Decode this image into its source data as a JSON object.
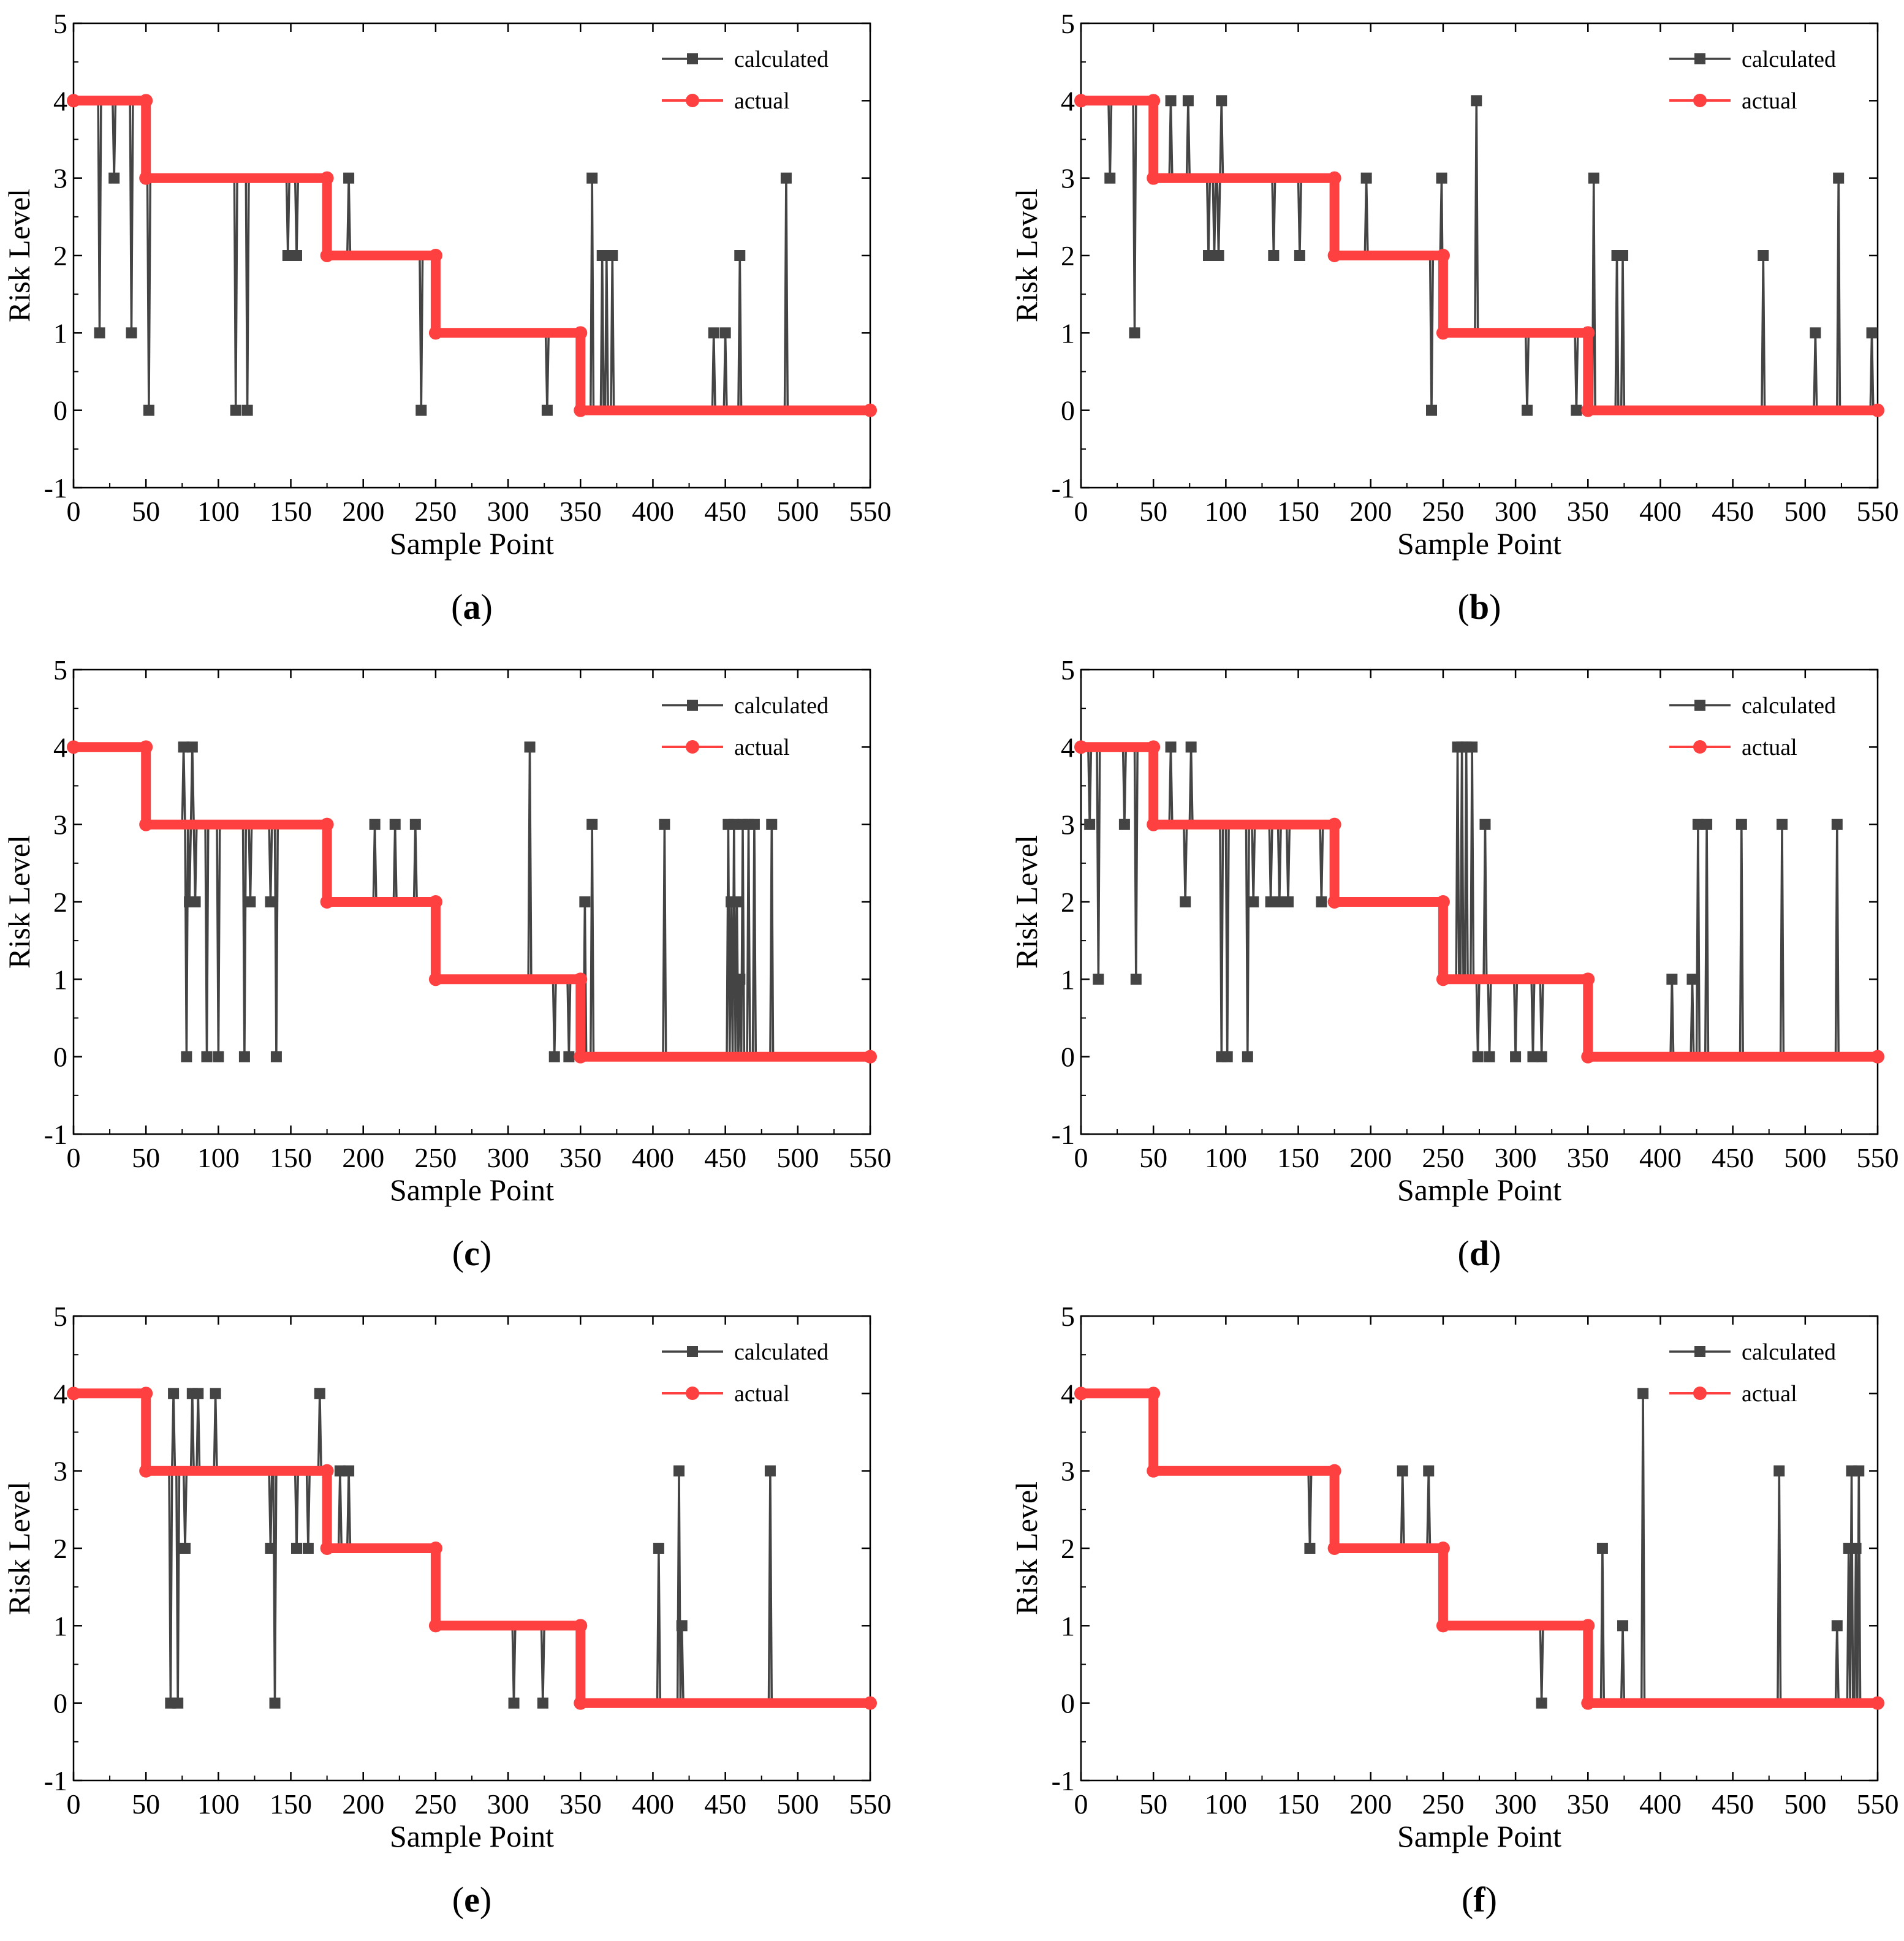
{
  "colors": {
    "calculated": "#444444",
    "actual": "#ff4040",
    "axis": "#000000"
  },
  "chart_data": [
    {
      "panel": "a",
      "type": "line",
      "xlabel": "Sample Point",
      "ylabel": "Risk Level",
      "xlim": [
        0,
        550
      ],
      "ylim": [
        -1,
        5
      ],
      "xticks": [
        0,
        50,
        100,
        150,
        200,
        250,
        300,
        350,
        400,
        450,
        500,
        550
      ],
      "yticks": [
        -1,
        0,
        1,
        2,
        3,
        4,
        5
      ],
      "legend": [
        "calculated",
        "actual"
      ],
      "legend_position": "top-right",
      "actual": {
        "breaks": [
          0,
          50,
          175,
          250,
          350,
          550
        ],
        "levels": [
          4,
          3,
          2,
          1,
          0
        ]
      },
      "calculated_deviations": [
        [
          18,
          1
        ],
        [
          28,
          3
        ],
        [
          40,
          1
        ],
        [
          52,
          0
        ],
        [
          112,
          0
        ],
        [
          120,
          0
        ],
        [
          148,
          2
        ],
        [
          154,
          2
        ],
        [
          190,
          3
        ],
        [
          240,
          0
        ],
        [
          327,
          0
        ],
        [
          358,
          3
        ],
        [
          365,
          2
        ],
        [
          368,
          2
        ],
        [
          372,
          2
        ],
        [
          442,
          1
        ],
        [
          450,
          1
        ],
        [
          460,
          2
        ],
        [
          492,
          3
        ]
      ]
    },
    {
      "panel": "b",
      "type": "line",
      "xlabel": "Sample Point",
      "ylabel": "Risk Level",
      "xlim": [
        0,
        550
      ],
      "ylim": [
        -1,
        5
      ],
      "xticks": [
        0,
        50,
        100,
        150,
        200,
        250,
        300,
        350,
        400,
        450,
        500,
        550
      ],
      "yticks": [
        -1,
        0,
        1,
        2,
        3,
        4,
        5
      ],
      "legend": [
        "calculated",
        "actual"
      ],
      "legend_position": "top-right",
      "actual": {
        "breaks": [
          0,
          50,
          175,
          250,
          350,
          550
        ],
        "levels": [
          4,
          3,
          2,
          1,
          0
        ]
      },
      "calculated_deviations": [
        [
          20,
          3
        ],
        [
          37,
          1
        ],
        [
          62,
          4
        ],
        [
          74,
          4
        ],
        [
          88,
          2
        ],
        [
          92,
          2
        ],
        [
          95,
          2
        ],
        [
          97,
          4
        ],
        [
          133,
          2
        ],
        [
          151,
          2
        ],
        [
          197,
          3
        ],
        [
          242,
          0
        ],
        [
          249,
          3
        ],
        [
          273,
          4
        ],
        [
          308,
          0
        ],
        [
          342,
          0
        ],
        [
          354,
          3
        ],
        [
          370,
          2
        ],
        [
          374,
          2
        ],
        [
          471,
          2
        ],
        [
          507,
          1
        ],
        [
          523,
          3
        ],
        [
          546,
          1
        ]
      ]
    },
    {
      "panel": "c",
      "type": "line",
      "xlabel": "Sample Point",
      "ylabel": "Risk Level",
      "xlim": [
        0,
        550
      ],
      "ylim": [
        -1,
        5
      ],
      "xticks": [
        0,
        50,
        100,
        150,
        200,
        250,
        300,
        350,
        400,
        450,
        500,
        550
      ],
      "yticks": [
        -1,
        0,
        1,
        2,
        3,
        4,
        5
      ],
      "legend": [
        "calculated",
        "actual"
      ],
      "legend_position": "top-right",
      "actual": {
        "breaks": [
          0,
          50,
          175,
          250,
          350,
          550
        ],
        "levels": [
          4,
          3,
          2,
          1,
          0
        ]
      },
      "calculated_deviations": [
        [
          76,
          4
        ],
        [
          78,
          0
        ],
        [
          80,
          2
        ],
        [
          82,
          4
        ],
        [
          84,
          2
        ],
        [
          92,
          0
        ],
        [
          100,
          0
        ],
        [
          118,
          0
        ],
        [
          122,
          2
        ],
        [
          136,
          2
        ],
        [
          140,
          0
        ],
        [
          208,
          3
        ],
        [
          222,
          3
        ],
        [
          236,
          3
        ],
        [
          315,
          4
        ],
        [
          332,
          0
        ],
        [
          342,
          0
        ],
        [
          353,
          2
        ],
        [
          358,
          3
        ],
        [
          408,
          3
        ],
        [
          452,
          3
        ],
        [
          454,
          2
        ],
        [
          456,
          3
        ],
        [
          458,
          2
        ],
        [
          460,
          1
        ],
        [
          462,
          3
        ],
        [
          466,
          3
        ],
        [
          470,
          3
        ],
        [
          482,
          3
        ]
      ]
    },
    {
      "panel": "d",
      "type": "line",
      "xlabel": "Sample Point",
      "ylabel": "Risk Level",
      "xlim": [
        0,
        550
      ],
      "ylim": [
        -1,
        5
      ],
      "xticks": [
        0,
        50,
        100,
        150,
        200,
        250,
        300,
        350,
        400,
        450,
        500,
        550
      ],
      "yticks": [
        -1,
        0,
        1,
        2,
        3,
        4,
        5
      ],
      "legend": [
        "calculated",
        "actual"
      ],
      "legend_position": "top-right",
      "actual": {
        "breaks": [
          0,
          50,
          175,
          250,
          350,
          550
        ],
        "levels": [
          4,
          3,
          2,
          1,
          0
        ]
      },
      "calculated_deviations": [
        [
          6,
          3
        ],
        [
          12,
          1
        ],
        [
          30,
          3
        ],
        [
          38,
          1
        ],
        [
          62,
          4
        ],
        [
          72,
          2
        ],
        [
          76,
          4
        ],
        [
          97,
          0
        ],
        [
          101,
          0
        ],
        [
          115,
          0
        ],
        [
          119,
          2
        ],
        [
          131,
          2
        ],
        [
          137,
          2
        ],
        [
          143,
          2
        ],
        [
          166,
          2
        ],
        [
          260,
          4
        ],
        [
          263,
          4
        ],
        [
          266,
          4
        ],
        [
          270,
          4
        ],
        [
          274,
          0
        ],
        [
          279,
          3
        ],
        [
          282,
          0
        ],
        [
          300,
          0
        ],
        [
          312,
          0
        ],
        [
          318,
          0
        ],
        [
          408,
          1
        ],
        [
          422,
          1
        ],
        [
          426,
          3
        ],
        [
          432,
          3
        ],
        [
          456,
          3
        ],
        [
          484,
          3
        ],
        [
          522,
          3
        ]
      ]
    },
    {
      "panel": "e",
      "type": "line",
      "xlabel": "Sample Point",
      "ylabel": "Risk Level",
      "xlim": [
        0,
        550
      ],
      "ylim": [
        -1,
        5
      ],
      "xticks": [
        0,
        50,
        100,
        150,
        200,
        250,
        300,
        350,
        400,
        450,
        500,
        550
      ],
      "yticks": [
        -1,
        0,
        1,
        2,
        3,
        4,
        5
      ],
      "legend": [
        "calculated",
        "actual"
      ],
      "legend_position": "top-right",
      "actual": {
        "breaks": [
          0,
          50,
          175,
          250,
          350,
          550
        ],
        "levels": [
          4,
          3,
          2,
          1,
          0
        ]
      },
      "calculated_deviations": [
        [
          67,
          0
        ],
        [
          69,
          4
        ],
        [
          72,
          0
        ],
        [
          77,
          2
        ],
        [
          82,
          4
        ],
        [
          86,
          4
        ],
        [
          98,
          4
        ],
        [
          136,
          2
        ],
        [
          139,
          0
        ],
        [
          154,
          2
        ],
        [
          162,
          2
        ],
        [
          170,
          4
        ],
        [
          184,
          3
        ],
        [
          190,
          3
        ],
        [
          304,
          0
        ],
        [
          324,
          0
        ],
        [
          404,
          2
        ],
        [
          418,
          3
        ],
        [
          420,
          1
        ],
        [
          481,
          3
        ]
      ]
    },
    {
      "panel": "f",
      "type": "line",
      "xlabel": "Sample Point",
      "ylabel": "Risk Level",
      "xlim": [
        0,
        550
      ],
      "ylim": [
        -1,
        5
      ],
      "xticks": [
        0,
        50,
        100,
        150,
        200,
        250,
        300,
        350,
        400,
        450,
        500,
        550
      ],
      "yticks": [
        -1,
        0,
        1,
        2,
        3,
        4,
        5
      ],
      "legend": [
        "calculated",
        "actual"
      ],
      "legend_position": "top-right",
      "actual": {
        "breaks": [
          0,
          50,
          175,
          250,
          350,
          550
        ],
        "levels": [
          4,
          3,
          2,
          1,
          0
        ]
      },
      "calculated_deviations": [
        [
          158,
          2
        ],
        [
          222,
          3
        ],
        [
          240,
          3
        ],
        [
          318,
          0
        ],
        [
          360,
          2
        ],
        [
          374,
          1
        ],
        [
          388,
          4
        ],
        [
          482,
          3
        ],
        [
          522,
          1
        ],
        [
          530,
          2
        ],
        [
          532,
          3
        ],
        [
          535,
          2
        ],
        [
          537,
          3
        ]
      ]
    }
  ]
}
